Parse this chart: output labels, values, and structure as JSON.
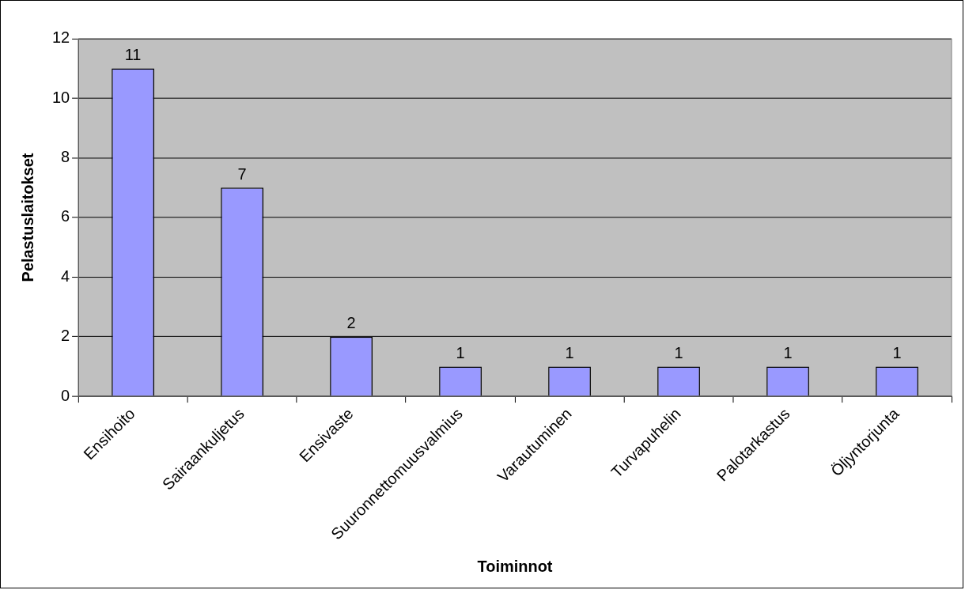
{
  "chart_data": {
    "type": "bar",
    "xlabel": "Toiminnot",
    "ylabel": "Pelastuslaitokset",
    "categories": [
      "Ensihoito",
      "Sairaankuljetus",
      "Ensivaste",
      "Suuronnettomuusvalmius",
      "Varautuminen",
      "Turvapuhelin",
      "Palotarkastus",
      "Öljyntorjunta"
    ],
    "values": [
      11,
      7,
      2,
      1,
      1,
      1,
      1,
      1
    ],
    "color": "#9999ff",
    "ylim": [
      0,
      12
    ],
    "yticks": [
      0,
      2,
      4,
      6,
      8,
      10,
      12
    ],
    "grid": "y",
    "data_labels": true
  }
}
